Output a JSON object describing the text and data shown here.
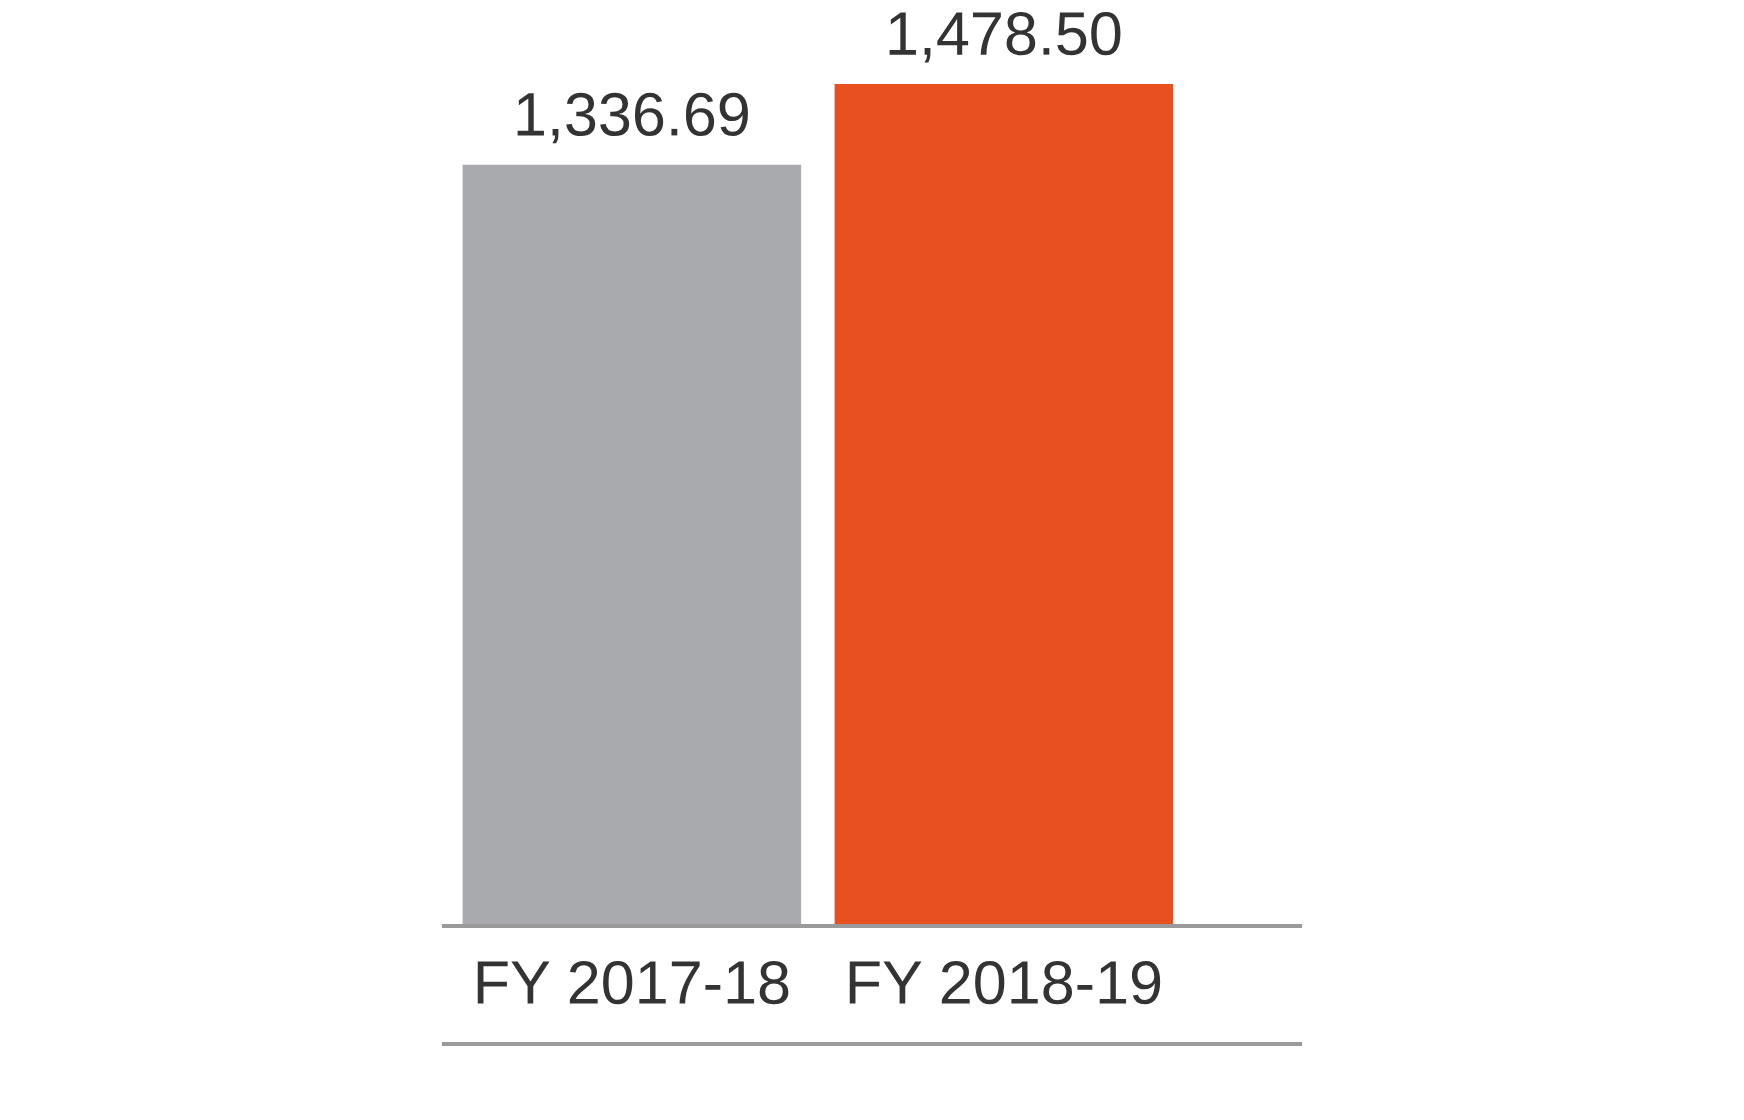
{
  "chart_data": {
    "type": "bar",
    "categories": [
      "FY 2017-18",
      "FY 2018-19"
    ],
    "values": [
      1336.69,
      1478.5
    ],
    "value_labels": [
      "1,336.69",
      "1,478.50"
    ],
    "colors": [
      "#a9aaae",
      "#e8511f"
    ],
    "grid": false,
    "legend": false
  }
}
